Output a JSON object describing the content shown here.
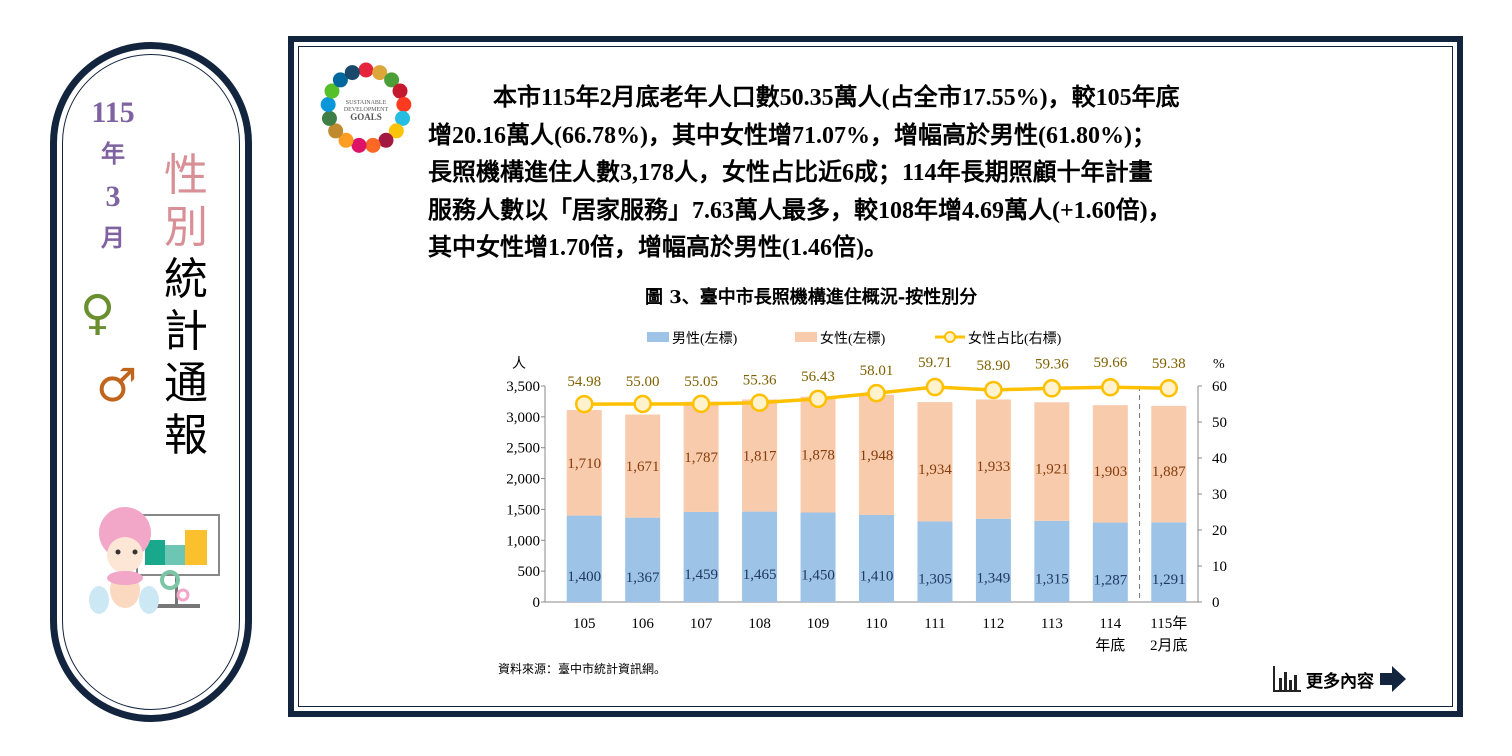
{
  "sidebar": {
    "year": "115",
    "year_unit": "年",
    "month": "3",
    "month_unit": "月",
    "title_chars": [
      "性",
      "別",
      "統",
      "計",
      "通",
      "報"
    ],
    "female_symbol": "♀",
    "male_symbol": "♂"
  },
  "sdg_logo": "SUSTAINABLE DEVELOPMENT GOALS",
  "summary_lines": [
    "本市115年2月底老年人口數50.35萬人(占全市17.55%)，較105年底",
    "增20.16萬人(66.78%)，其中女性增71.07%，增幅高於男性(61.80%)；",
    "長照機構進住人數3,178人，女性占比近6成；114年長期照顧十年計畫",
    "服務人數以「居家服務」7.63萬人最多，較108年增4.69萬人(+1.60倍)，",
    "其中女性增1.70倍，增幅高於男性(1.46倍)。"
  ],
  "chart_data": {
    "type": "bar",
    "title": "圖 3、臺中市長照機構進住概況-按性別分",
    "categories": [
      "105",
      "106",
      "107",
      "108",
      "109",
      "110",
      "111",
      "112",
      "113",
      "114\n年底",
      "115年\n2月底"
    ],
    "series": [
      {
        "name": "男性(左標)",
        "type": "bar",
        "axis": "left",
        "color": "#9dc3e6",
        "values": [
          1400,
          1367,
          1459,
          1465,
          1450,
          1410,
          1305,
          1349,
          1315,
          1287,
          1291
        ]
      },
      {
        "name": "女性(左標)",
        "type": "bar",
        "axis": "left",
        "color": "#f8cbad",
        "values": [
          1710,
          1671,
          1787,
          1817,
          1878,
          1948,
          1934,
          1933,
          1921,
          1903,
          1887
        ]
      },
      {
        "name": "女性占比(右標)",
        "type": "line",
        "axis": "right",
        "color": "#ffc000",
        "values": [
          54.98,
          55.0,
          55.05,
          55.36,
          56.43,
          58.01,
          59.71,
          58.9,
          59.36,
          59.66,
          59.38
        ]
      }
    ],
    "stacked": true,
    "ylabel_left": "人",
    "ylabel_right": "%",
    "ylim_left": [
      0,
      3500
    ],
    "yticks_left": [
      "0",
      "500",
      "1,000",
      "1,500",
      "2,000",
      "2,500",
      "3,000",
      "3,500"
    ],
    "ylim_right": [
      0,
      60
    ],
    "yticks_right": [
      "0",
      "10",
      "20",
      "30",
      "40",
      "50",
      "60"
    ],
    "legend": "top",
    "grid": false,
    "source": "資料來源：臺中市統計資訊網。"
  },
  "more_button": {
    "label": "更多內容"
  },
  "colors": {
    "frame": "#13243f",
    "purple": "#7f62a0",
    "pink": "#d88f96",
    "female": "#6a8f2f",
    "male": "#c0651c"
  }
}
